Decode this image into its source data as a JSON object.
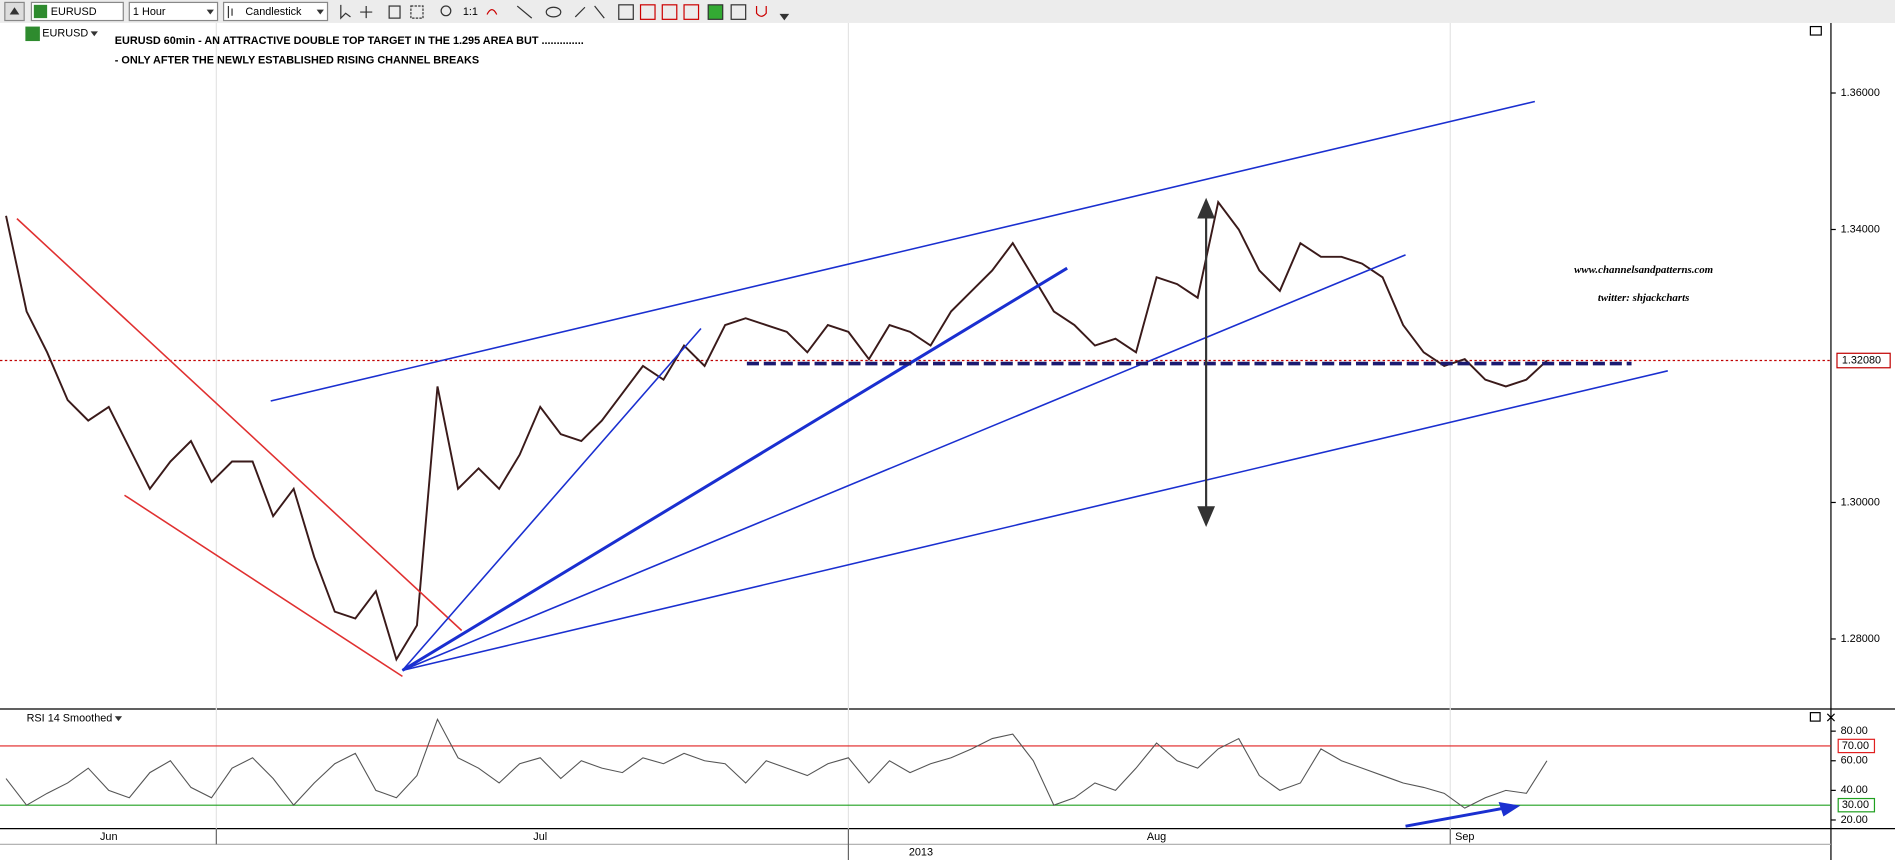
{
  "toolbar": {
    "symbol": "EURUSD",
    "interval": "1 Hour",
    "chart_style": "Candlestick",
    "zoom_label": "1:1"
  },
  "chart_data": [
    {
      "type": "line",
      "legend": "EURUSD",
      "title": "EURUSD 60min - AN ATTRACTIVE DOUBLE TOP TARGET IN THE 1.295 AREA BUT ..............",
      "subtitle": "- ONLY AFTER THE NEWLY ESTABLISHED RISING CHANNEL BREAKS",
      "annotations": [
        "www.channelsandpatterns.com",
        "twitter: shjackcharts"
      ],
      "x_axis_year": "2013",
      "categories": [
        null,
        null,
        null,
        null,
        null,
        "Jun",
        null,
        null,
        null,
        null,
        null,
        null,
        null,
        null,
        null,
        null,
        null,
        null,
        null,
        null,
        null,
        null,
        null,
        null,
        null,
        null,
        "Jul",
        null,
        null,
        null,
        null,
        null,
        null,
        null,
        null,
        null,
        null,
        null,
        null,
        null,
        null,
        null,
        null,
        null,
        null,
        null,
        null,
        null,
        null,
        null,
        null,
        null,
        null,
        null,
        null,
        null,
        "Aug",
        null,
        null,
        null,
        null,
        null,
        null,
        null,
        null,
        null,
        null,
        null,
        null,
        null,
        null,
        "Sep",
        null,
        null,
        null,
        null
      ],
      "values": [
        1.342,
        1.328,
        1.322,
        1.315,
        1.312,
        1.314,
        1.308,
        1.302,
        1.306,
        1.309,
        1.303,
        1.306,
        1.306,
        1.298,
        1.302,
        1.292,
        1.284,
        1.283,
        1.287,
        1.277,
        1.282,
        1.317,
        1.302,
        1.305,
        1.302,
        1.307,
        1.314,
        1.31,
        1.309,
        1.312,
        1.316,
        1.32,
        1.318,
        1.323,
        1.32,
        1.326,
        1.327,
        1.326,
        1.325,
        1.322,
        1.326,
        1.325,
        1.321,
        1.326,
        1.325,
        1.323,
        1.328,
        1.331,
        1.334,
        1.338,
        1.333,
        1.328,
        1.326,
        1.323,
        1.324,
        1.322,
        1.333,
        1.332,
        1.33,
        1.344,
        1.34,
        1.334,
        1.331,
        1.338,
        1.336,
        1.336,
        1.335,
        1.333,
        1.326,
        1.322,
        1.32,
        1.321,
        1.318,
        1.317,
        1.318,
        1.3208
      ],
      "color": "#3a1a1a",
      "ylim": [
        1.27,
        1.37
      ],
      "yticks": [
        {
          "value": 1.28,
          "label": "1.28000"
        },
        {
          "value": 1.3,
          "label": "1.30000"
        },
        {
          "value": 1.34,
          "label": "1.34000"
        },
        {
          "value": 1.36,
          "label": "1.36000"
        }
      ],
      "last_price": {
        "value": 1.3208,
        "label": "1.32080"
      },
      "last_price_color": "#c00000"
    },
    {
      "type": "line",
      "title": "RSI 14 Smoothed",
      "values": [
        48,
        30,
        38,
        45,
        55,
        40,
        35,
        52,
        60,
        42,
        35,
        55,
        62,
        48,
        30,
        45,
        58,
        65,
        40,
        35,
        50,
        88,
        62,
        55,
        45,
        58,
        62,
        48,
        60,
        55,
        52,
        62,
        58,
        65,
        60,
        58,
        45,
        60,
        55,
        50,
        58,
        62,
        45,
        60,
        52,
        58,
        62,
        68,
        75,
        78,
        60,
        30,
        35,
        45,
        40,
        55,
        72,
        60,
        55,
        68,
        75,
        50,
        40,
        45,
        68,
        60,
        55,
        50,
        45,
        42,
        38,
        28,
        35,
        40,
        38,
        60
      ],
      "color": "#555555",
      "ylim": [
        15,
        92.5
      ],
      "yticks": [
        {
          "value": 20,
          "label": "20.00"
        },
        {
          "value": 40,
          "label": "40.00"
        },
        {
          "value": 60,
          "label": "60.00"
        },
        {
          "value": 80,
          "label": "80.00"
        }
      ],
      "levels": [
        {
          "value": 70,
          "label": "70.00",
          "color": "#e02020"
        },
        {
          "value": 30,
          "label": "30.00",
          "color": "#20a020"
        }
      ]
    }
  ]
}
